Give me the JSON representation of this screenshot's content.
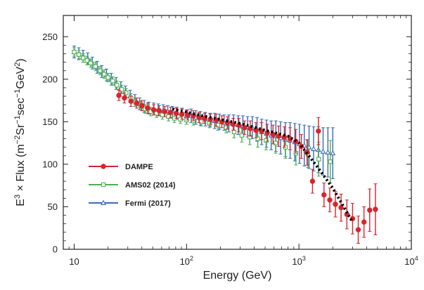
{
  "chart_data": {
    "type": "scatter",
    "title": "",
    "xlabel": "Energy (GeV)",
    "ylabel": "E3 × Flux (m−2Sr−1sec−1GeV2)",
    "xscale": "log",
    "xlim": [
      8,
      10000
    ],
    "ylim": [
      0,
      275
    ],
    "legend_position": "center-left",
    "xticks": [
      {
        "value": 10,
        "base": "10",
        "exp": ""
      },
      {
        "value": 100,
        "base": "10",
        "exp": "2"
      },
      {
        "value": 1000,
        "base": "10",
        "exp": "3"
      },
      {
        "value": 10000,
        "base": "10",
        "exp": "4"
      }
    ],
    "yticks": [
      0,
      50,
      100,
      150,
      200,
      250
    ],
    "ylabel_parts": {
      "prefix": "E",
      "prefix_exp": "3",
      "mid": " × Flux  (m",
      "u1_exp": "−2",
      "u2": "Sr",
      "u2_exp": "−1",
      "u3": "sec",
      "u3_exp": "−1",
      "u4": "GeV",
      "u4_exp": "2",
      "end": ")"
    },
    "series": [
      {
        "name": "DAMPE",
        "color": "#d9242b",
        "marker": "circle-filled",
        "points": [
          [
            25,
            181,
            6
          ],
          [
            28,
            178,
            6
          ],
          [
            32,
            174,
            6
          ],
          [
            36,
            172,
            6
          ],
          [
            40,
            169,
            6
          ],
          [
            45,
            166,
            6
          ],
          [
            51,
            164,
            6
          ],
          [
            57,
            163,
            6
          ],
          [
            64,
            162,
            6
          ],
          [
            72,
            161,
            6
          ],
          [
            81,
            160,
            6
          ],
          [
            91,
            159,
            6
          ],
          [
            102,
            158,
            6
          ],
          [
            115,
            157,
            6
          ],
          [
            129,
            155,
            6
          ],
          [
            145,
            154,
            6
          ],
          [
            163,
            153,
            6
          ],
          [
            183,
            152,
            7
          ],
          [
            206,
            150,
            7
          ],
          [
            231,
            149,
            7
          ],
          [
            260,
            147,
            7
          ],
          [
            292,
            146,
            8
          ],
          [
            328,
            143,
            8
          ],
          [
            369,
            142,
            9
          ],
          [
            414,
            140,
            9
          ],
          [
            465,
            139,
            10
          ],
          [
            523,
            137,
            10
          ],
          [
            588,
            135,
            11
          ],
          [
            660,
            133,
            12
          ],
          [
            742,
            132,
            12
          ],
          [
            834,
            130,
            13
          ],
          [
            937,
            127,
            14
          ],
          [
            1050,
            121,
            14
          ],
          [
            1180,
            114,
            15
          ],
          [
            1320,
            80,
            14
          ],
          [
            1490,
            139,
            16
          ],
          [
            1670,
            64,
            14
          ],
          [
            1880,
            58,
            14
          ],
          [
            2110,
            53,
            15
          ],
          [
            2370,
            49,
            16
          ],
          [
            2670,
            41,
            17
          ],
          [
            3000,
            36,
            18
          ],
          [
            3370,
            23,
            16
          ],
          [
            3790,
            32,
            18
          ],
          [
            4260,
            46,
            25
          ],
          [
            4790,
            47,
            30
          ]
        ]
      },
      {
        "name": "AMS02 (2014)",
        "color": "#4caf50",
        "marker": "square-open",
        "points": [
          [
            10,
            232,
            5
          ],
          [
            11,
            229,
            5
          ],
          [
            12,
            225,
            5
          ],
          [
            13,
            222,
            5
          ],
          [
            14,
            219,
            5
          ],
          [
            15.5,
            215,
            5
          ],
          [
            17,
            210,
            5
          ],
          [
            18.5,
            206,
            5
          ],
          [
            20,
            202,
            5
          ],
          [
            22,
            198,
            5
          ],
          [
            24,
            193,
            5
          ],
          [
            26.5,
            188,
            5
          ],
          [
            29,
            184,
            5
          ],
          [
            32,
            178,
            5
          ],
          [
            35,
            173,
            5
          ],
          [
            39,
            169,
            5
          ],
          [
            43,
            165,
            5
          ],
          [
            48,
            162,
            5
          ],
          [
            54,
            160,
            5
          ],
          [
            61,
            158,
            5
          ],
          [
            69,
            156,
            5
          ],
          [
            78,
            154,
            5
          ],
          [
            88,
            153,
            5
          ],
          [
            100,
            152,
            5
          ],
          [
            115,
            151,
            5
          ],
          [
            135,
            150,
            5
          ],
          [
            160,
            148,
            5
          ],
          [
            190,
            146,
            6
          ],
          [
            225,
            143,
            6
          ],
          [
            265,
            138,
            7
          ],
          [
            310,
            134,
            8
          ],
          [
            365,
            132,
            9
          ],
          [
            430,
            130,
            10
          ],
          [
            510,
            128,
            11
          ],
          [
            620,
            125,
            12
          ],
          [
            760,
            120,
            13
          ],
          [
            940,
            113,
            14
          ],
          [
            1200,
            112,
            16
          ],
          [
            1500,
            106,
            20
          ],
          [
            1900,
            103,
            25
          ]
        ]
      },
      {
        "name": "Fermi (2017)",
        "color": "#3a6bb5",
        "marker": "triangle-open",
        "points": [
          [
            10,
            232,
            7
          ],
          [
            11,
            230,
            7
          ],
          [
            12,
            227,
            7
          ],
          [
            13.2,
            224,
            7
          ],
          [
            14.5,
            219,
            7
          ],
          [
            16,
            214,
            7
          ],
          [
            17.6,
            209,
            7
          ],
          [
            19.4,
            205,
            7
          ],
          [
            21.4,
            200,
            7
          ],
          [
            23.6,
            195,
            7
          ],
          [
            26,
            190,
            7
          ],
          [
            28.6,
            185,
            7
          ],
          [
            31.5,
            180,
            7
          ],
          [
            34.7,
            175,
            7
          ],
          [
            38.2,
            171,
            7
          ],
          [
            42,
            168,
            7
          ],
          [
            46.3,
            166,
            7
          ],
          [
            51,
            165,
            7
          ],
          [
            56,
            164,
            7
          ],
          [
            62,
            163,
            7
          ],
          [
            68,
            162,
            7
          ],
          [
            75,
            161,
            7
          ],
          [
            82,
            160,
            7
          ],
          [
            91,
            159,
            7
          ],
          [
            100,
            157,
            7
          ],
          [
            110,
            157,
            8
          ],
          [
            121,
            155,
            8
          ],
          [
            133,
            154,
            8
          ],
          [
            147,
            153,
            8
          ],
          [
            162,
            152,
            8
          ],
          [
            178,
            151,
            9
          ],
          [
            196,
            150,
            9
          ],
          [
            216,
            149,
            9
          ],
          [
            238,
            148,
            10
          ],
          [
            262,
            147,
            11
          ],
          [
            288,
            146,
            11
          ],
          [
            317,
            145,
            12
          ],
          [
            349,
            144,
            12
          ],
          [
            385,
            143,
            13
          ],
          [
            424,
            141,
            14
          ],
          [
            466,
            138,
            15
          ],
          [
            514,
            136,
            16
          ],
          [
            566,
            134,
            17
          ],
          [
            623,
            133,
            18
          ],
          [
            687,
            131,
            19
          ],
          [
            757,
            129,
            20
          ],
          [
            834,
            128,
            21
          ],
          [
            919,
            126,
            22
          ],
          [
            1010,
            124,
            23
          ],
          [
            1115,
            122,
            24
          ],
          [
            1230,
            120,
            25
          ],
          [
            1350,
            118,
            26
          ],
          [
            1490,
            117,
            27
          ],
          [
            1640,
            115,
            28
          ],
          [
            1810,
            114,
            29
          ],
          [
            2000,
            113,
            30
          ]
        ]
      }
    ],
    "fit_line": {
      "color": "#000000",
      "style": "dotted",
      "points": [
        [
          75,
          165
        ],
        [
          150,
          156
        ],
        [
          300,
          148
        ],
        [
          500,
          140
        ],
        [
          800,
          133
        ],
        [
          1000,
          125
        ],
        [
          1400,
          100
        ],
        [
          2000,
          72
        ],
        [
          3000,
          32
        ]
      ]
    }
  },
  "legend": {
    "items": [
      {
        "label": "DAMPE",
        "color": "#d9242b",
        "marker": "circle-filled"
      },
      {
        "label": "AMS02 (2014)",
        "color": "#4caf50",
        "marker": "square-open"
      },
      {
        "label": "Fermi (2017)",
        "color": "#3a6bb5",
        "marker": "triangle-open"
      }
    ]
  }
}
